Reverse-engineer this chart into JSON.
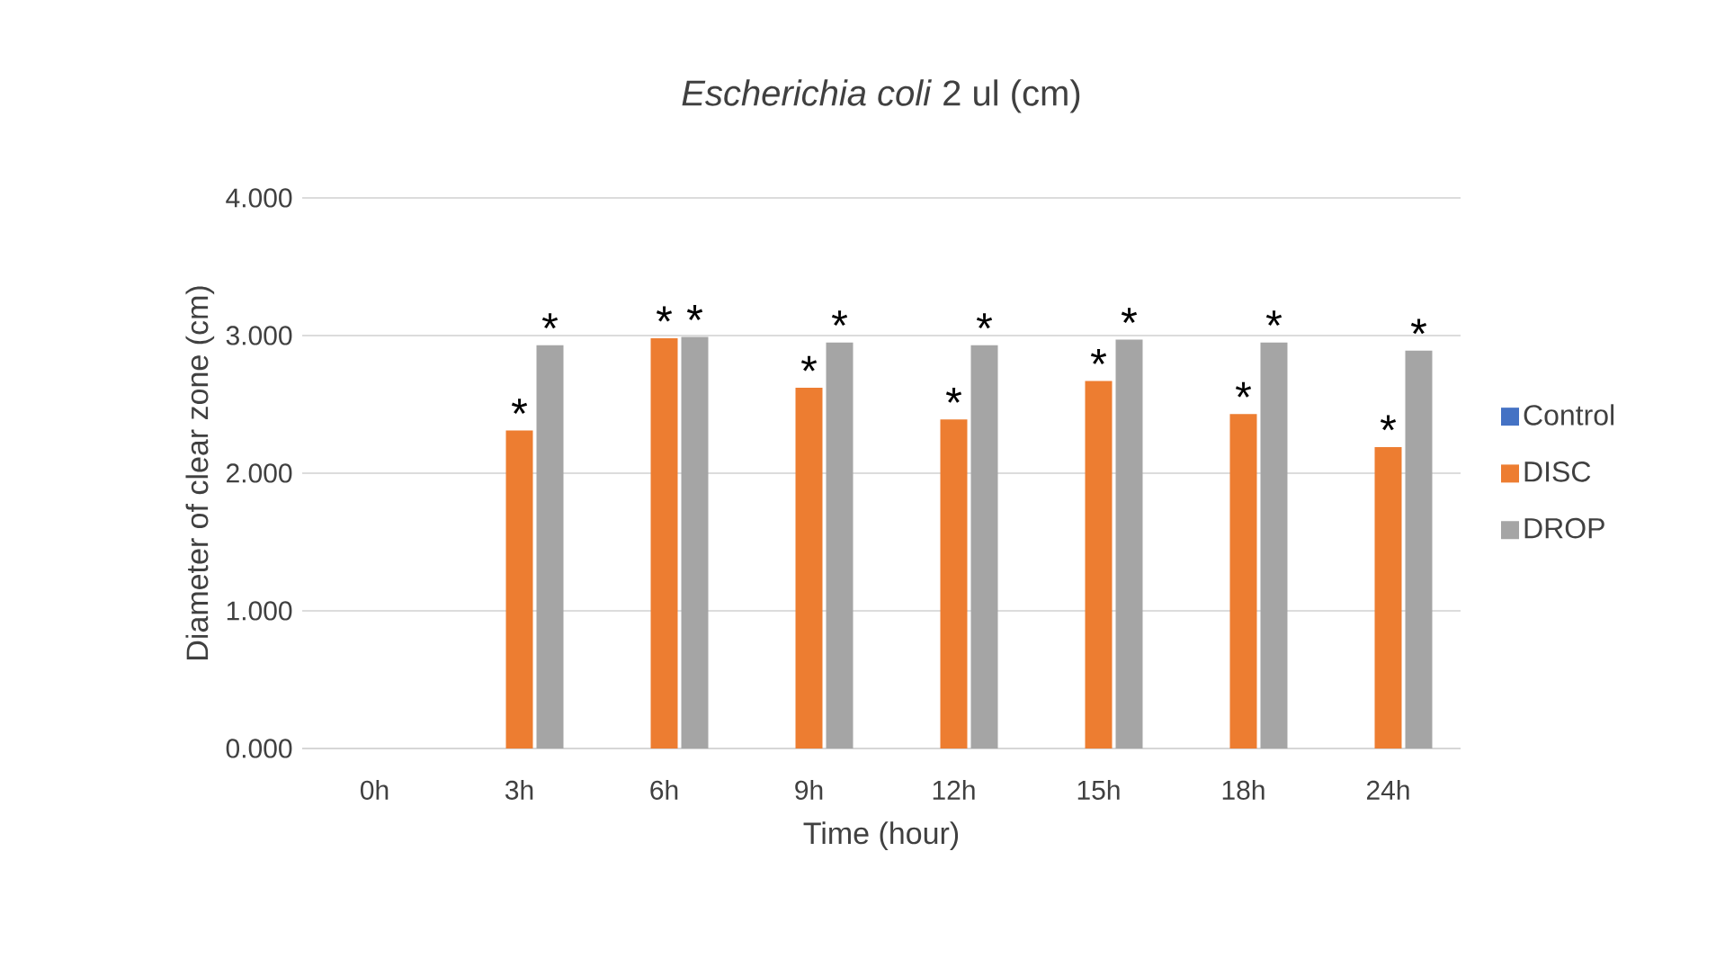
{
  "chart_data": {
    "type": "bar",
    "title": "*Escherichia coli* 2 ul (cm)",
    "xlabel": "Time (hour)",
    "ylabel": "Diameter of clear zone (cm)",
    "categories": [
      "0h",
      "3h",
      "6h",
      "9h",
      "12h",
      "15h",
      "18h",
      "24h"
    ],
    "series": [
      {
        "name": "Control",
        "color": "#4472c4",
        "values": [
          0,
          0,
          0,
          0,
          0,
          0,
          0,
          0
        ]
      },
      {
        "name": "DISC",
        "color": "#ed7d31",
        "values": [
          0,
          2.31,
          2.98,
          2.62,
          2.39,
          2.67,
          2.43,
          2.19
        ],
        "value_labels": [
          null,
          "*",
          "*",
          "*",
          "*",
          "*",
          "*",
          "*"
        ]
      },
      {
        "name": "DROP",
        "color": "#a5a5a5",
        "values": [
          0,
          2.93,
          2.99,
          2.95,
          2.93,
          2.97,
          2.95,
          2.89
        ],
        "value_labels": [
          null,
          "*",
          "*",
          "*",
          "*",
          "*",
          "*",
          "*"
        ]
      }
    ],
    "ylim": [
      0,
      4
    ],
    "yticks": [
      {
        "value": 0,
        "label": "0.000"
      },
      {
        "value": 1,
        "label": "1.000"
      },
      {
        "value": 2,
        "label": "2.000"
      },
      {
        "value": 3,
        "label": "3.000"
      },
      {
        "value": 4,
        "label": "4.000"
      }
    ],
    "grid": "y",
    "legend": "right"
  }
}
